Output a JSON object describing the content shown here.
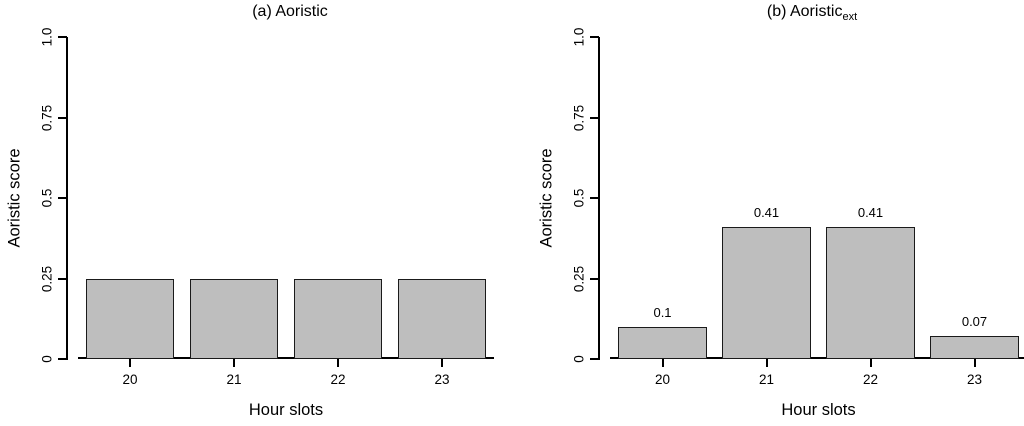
{
  "figure": {
    "background": "#ffffff",
    "bar_fill": "#bebebe",
    "bar_border": "#1a1a1a",
    "axis_color": "#000000"
  },
  "chart_data": [
    {
      "type": "bar",
      "panel": "a",
      "title": "(a) Aoristic",
      "categories": [
        "20",
        "21",
        "22",
        "23"
      ],
      "values": [
        0.25,
        0.25,
        0.25,
        0.25
      ],
      "xlabel": "Hour slots",
      "ylabel": "Aoristic score",
      "ylim": [
        0,
        1.0
      ],
      "y_ticks": [
        0,
        0.25,
        0.5,
        0.75,
        1.0
      ],
      "y_tick_labels": [
        "0",
        "0.25",
        "0.5",
        "0.75",
        "1.0"
      ],
      "grid": "off",
      "legend": "none"
    },
    {
      "type": "bar",
      "panel": "b",
      "title": "(b) Aoristic",
      "title_sub": "ext",
      "categories": [
        "20",
        "21",
        "22",
        "23"
      ],
      "values": [
        0.1,
        0.41,
        0.41,
        0.07
      ],
      "bar_labels": [
        "0.1",
        "0.41",
        "0.41",
        "0.07"
      ],
      "xlabel": "Hour slots",
      "ylabel": "Aoristic score",
      "ylim": [
        0,
        1.0
      ],
      "y_ticks": [
        0,
        0.25,
        0.5,
        0.75,
        1.0
      ],
      "y_tick_labels": [
        "0",
        "0.25",
        "0.5",
        "0.75",
        "1.0"
      ],
      "grid": "off",
      "legend": "none"
    }
  ]
}
